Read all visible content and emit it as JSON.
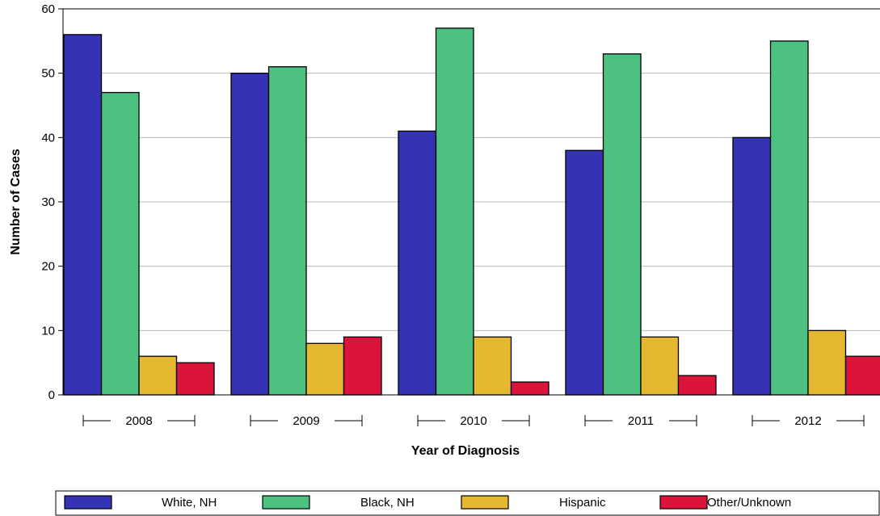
{
  "chart_data": {
    "type": "bar",
    "title": "",
    "xlabel": "Year of Diagnosis",
    "ylabel": "Number of Cases",
    "categories": [
      "2008",
      "2009",
      "2010",
      "2011",
      "2012"
    ],
    "ylim": [
      0,
      60
    ],
    "yticks": [
      "0",
      "10",
      "20",
      "30",
      "40",
      "50",
      "60"
    ],
    "grid": true,
    "legend_position": "bottom",
    "series": [
      {
        "name": "White, NH",
        "color": "#3333b3",
        "values": [
          56,
          50,
          41,
          38,
          40
        ]
      },
      {
        "name": "Black, NH",
        "color": "#4dc180",
        "values": [
          47,
          51,
          57,
          53,
          55
        ]
      },
      {
        "name": "Hispanic",
        "color": "#e6b832",
        "values": [
          6,
          8,
          9,
          9,
          10
        ]
      },
      {
        "name": "Other/Unknown",
        "color": "#dc143c",
        "values": [
          5,
          9,
          2,
          3,
          6
        ]
      }
    ]
  }
}
